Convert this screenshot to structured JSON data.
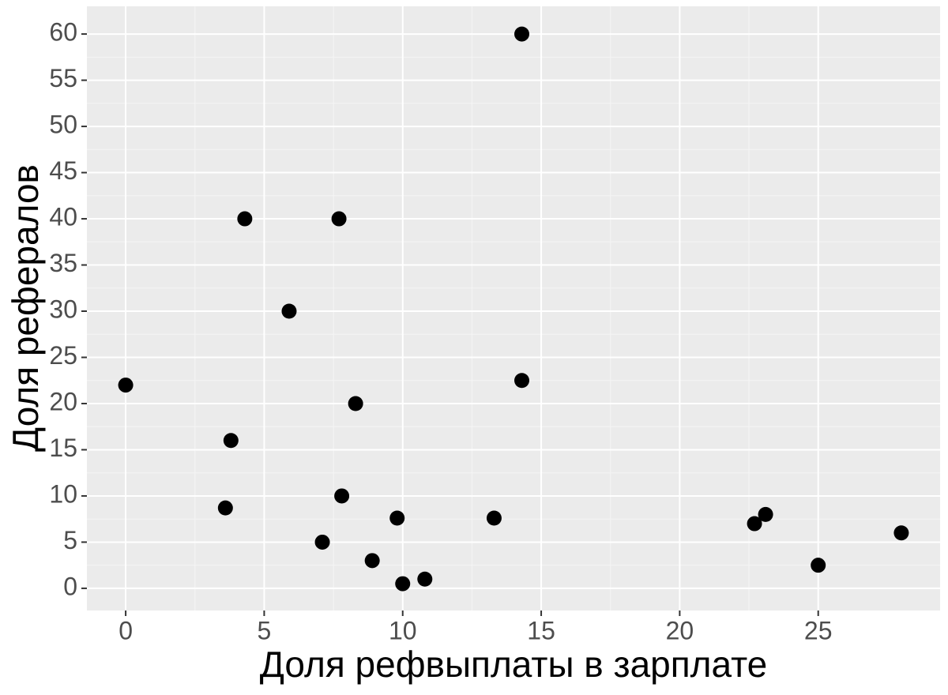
{
  "chart_data": {
    "type": "scatter",
    "x_label": "Доля рефвыплаты в зарплате",
    "y_label": "Доля рефералов",
    "x": [
      0,
      4.3,
      7.7,
      5.9,
      14.3,
      14.3,
      8.3,
      3.8,
      3.6,
      7.8,
      9.8,
      13.3,
      7.1,
      8.9,
      10.0,
      10.8,
      22.7,
      23.1,
      25,
      28
    ],
    "values": [
      22,
      40,
      40,
      30,
      60,
      22.5,
      20,
      16,
      8.7,
      10,
      7.6,
      7.6,
      5,
      3,
      0.5,
      1,
      7,
      8,
      2.5,
      6
    ],
    "color": "#000000",
    "xlim": [
      -1.4,
      29.4
    ],
    "ylim": [
      -2.4,
      63
    ],
    "xticks": [
      0,
      5,
      10,
      15,
      20,
      25
    ],
    "yticks": [
      0,
      5,
      10,
      15,
      20,
      25,
      30,
      35,
      40,
      45,
      50,
      55,
      60
    ],
    "grid": true
  }
}
